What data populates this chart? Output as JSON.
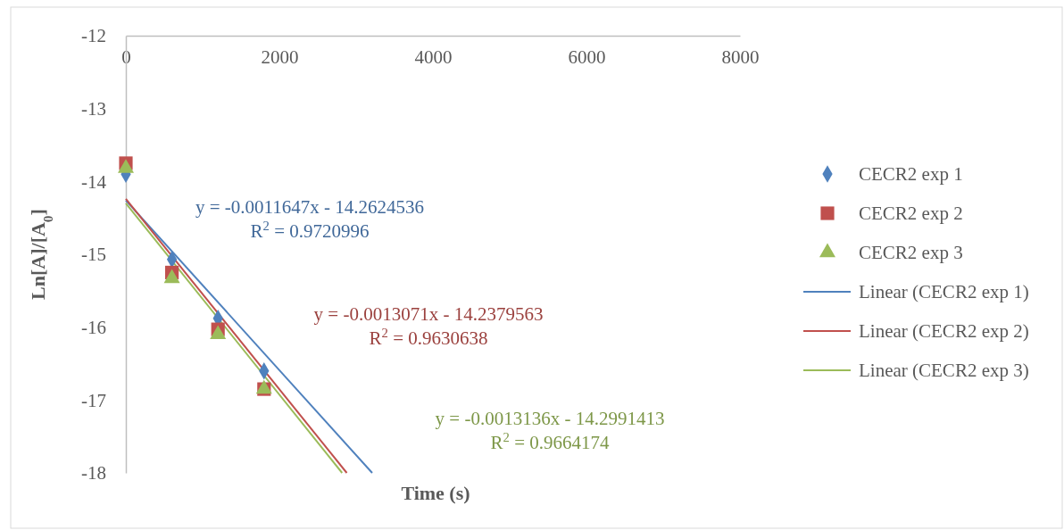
{
  "chart_data": {
    "type": "scatter",
    "xlabel": "Time (s)",
    "ylabel": "Ln[A]/[A$_{0}$]",
    "xlim": [
      0,
      8000
    ],
    "xticks": [
      0,
      2000,
      4000,
      6000,
      8000
    ],
    "ylim": [
      -18,
      -12
    ],
    "yticks": [
      -18,
      -17,
      -16,
      -15,
      -14,
      -13,
      -12
    ],
    "grid": false,
    "legend": "right",
    "series": [
      {
        "name": "CECR2 exp 1",
        "color": "#4f81bd",
        "marker": "diamond",
        "x": [
          0,
          600,
          1200,
          1800
        ],
        "values": [
          -13.9,
          -15.07,
          -15.88,
          -16.6
        ]
      },
      {
        "name": "CECR2 exp 2",
        "color": "#c0504d",
        "marker": "square",
        "x": [
          0,
          600,
          1200,
          1800
        ],
        "values": [
          -13.75,
          -15.25,
          -16.03,
          -16.85
        ]
      },
      {
        "name": "CECR2 exp 3",
        "color": "#9bbb59",
        "marker": "triangle",
        "x": [
          0,
          600,
          1200,
          1800
        ],
        "values": [
          -13.82,
          -15.33,
          -16.1,
          -16.85
        ]
      },
      {
        "name": "Linear (CECR2 exp 1)",
        "type": "line",
        "color": "#4f81bd",
        "marker": "none",
        "x": [
          0,
          3209
        ],
        "values": [
          -14.26,
          -18
        ]
      },
      {
        "name": "Linear (CECR2 exp 2)",
        "type": "line",
        "color": "#c0504d",
        "marker": "none",
        "x": [
          0,
          2878
        ],
        "values": [
          -14.24,
          -18
        ]
      },
      {
        "name": "Linear (CECR2 exp 3)",
        "type": "line",
        "color": "#9bbb59",
        "marker": "none",
        "x": [
          0,
          2817
        ],
        "values": [
          -14.3,
          -18
        ]
      }
    ],
    "annotations": [
      "y = -0.0011647x - 14.2624536\nR$^{2}$ = 0.9720996",
      "y = -0.0013071x - 14.2379563\nR$^{2}$ = 0.9630638",
      "y = -0.0013136x - 14.2991413\nR$^{2}$ = 0.9664174"
    ]
  }
}
